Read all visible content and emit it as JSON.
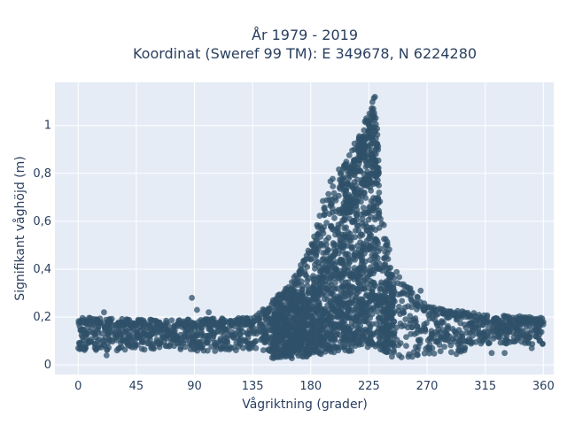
{
  "chart_data": {
    "type": "scatter",
    "title_line1": "År 1979 - 2019",
    "title_line2": "Koordinat (Sweref 99 TM): E 349678, N 6224280",
    "xlabel": "Vågriktning (grader)",
    "ylabel": "Signifikant våghöjd (m)",
    "xlim": [
      -18,
      368
    ],
    "ylim": [
      -0.04,
      1.18
    ],
    "x_ticks": [
      0,
      45,
      90,
      135,
      180,
      225,
      270,
      315,
      360
    ],
    "y_ticks": [
      0,
      0.2,
      0.4,
      0.6,
      0.8,
      1
    ],
    "y_tick_labels": [
      "0",
      "0,2",
      "0,4",
      "0,6",
      "0,8",
      "1"
    ],
    "grid": true,
    "legend": "none",
    "marker_color": "#2f5068",
    "plot_background": "#e5ecf6",
    "envelope": [
      {
        "x": 0,
        "y_max": 0.2
      },
      {
        "x": 45,
        "y_max": 0.19
      },
      {
        "x": 90,
        "y_max": 0.19
      },
      {
        "x": 135,
        "y_max": 0.2
      },
      {
        "x": 150,
        "y_max": 0.27
      },
      {
        "x": 165,
        "y_max": 0.35
      },
      {
        "x": 180,
        "y_max": 0.5
      },
      {
        "x": 190,
        "y_max": 0.72
      },
      {
        "x": 200,
        "y_max": 0.82
      },
      {
        "x": 210,
        "y_max": 0.88
      },
      {
        "x": 220,
        "y_max": 1.0
      },
      {
        "x": 230,
        "y_max": 1.13
      },
      {
        "x": 235,
        "y_max": 0.65
      },
      {
        "x": 240,
        "y_max": 0.5
      },
      {
        "x": 250,
        "y_max": 0.35
      },
      {
        "x": 270,
        "y_max": 0.25
      },
      {
        "x": 315,
        "y_max": 0.21
      },
      {
        "x": 360,
        "y_max": 0.2
      }
    ],
    "outliers": [
      {
        "x": 88,
        "y": 0.28
      },
      {
        "x": 92,
        "y": 0.23
      },
      {
        "x": 101,
        "y": 0.22
      },
      {
        "x": 20,
        "y": 0.22
      },
      {
        "x": 257,
        "y": 0.32
      },
      {
        "x": 265,
        "y": 0.31
      },
      {
        "x": 22,
        "y": 0.04
      },
      {
        "x": 320,
        "y": 0.05
      },
      {
        "x": 330,
        "y": 0.05
      },
      {
        "x": 351,
        "y": 0.07
      },
      {
        "x": 357,
        "y": 0.1
      },
      {
        "x": 340,
        "y": 0.13
      }
    ]
  }
}
